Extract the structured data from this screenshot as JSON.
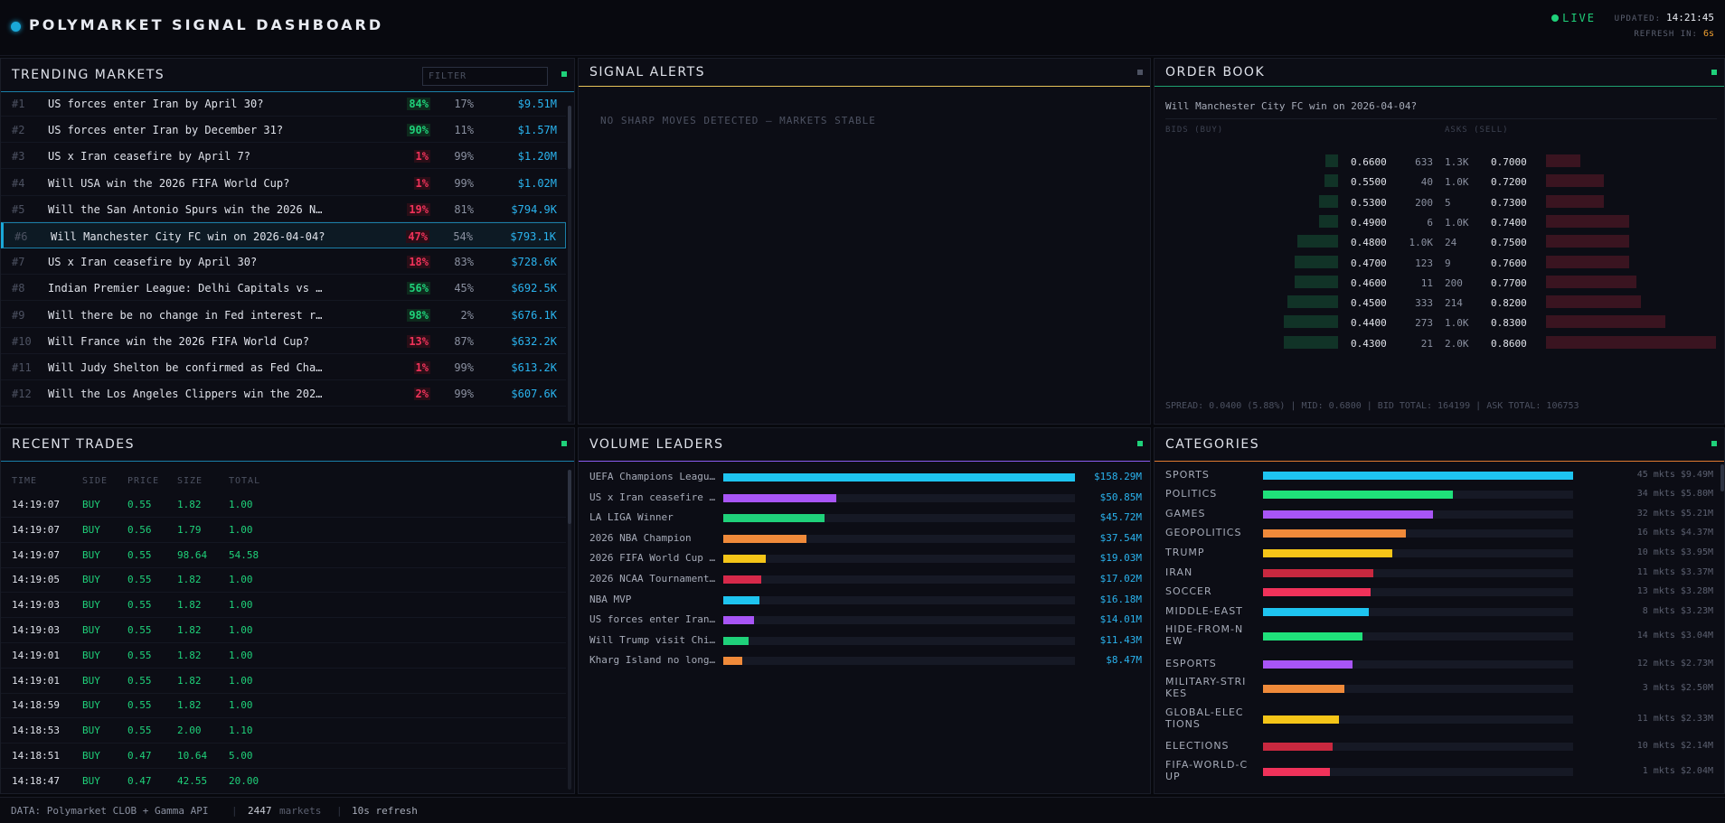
{
  "app": {
    "title": "POLYMARKET SIGNAL DASHBOARD",
    "live": "LIVE",
    "updated_label": "UPDATED:",
    "updated_time": "14:21:45",
    "refresh_label": "REFRESH IN:",
    "refresh_value": "6s"
  },
  "trending": {
    "title": "TRENDING MARKETS",
    "filter_placeholder": "FILTER",
    "rows": [
      {
        "rank": "#1",
        "q": "US forces enter Iran by April 30?",
        "yes": "84%",
        "no": "17%",
        "vol": "$9.51M",
        "pos": true
      },
      {
        "rank": "#2",
        "q": "US forces enter Iran by December 31?",
        "yes": "90%",
        "no": "11%",
        "vol": "$1.57M",
        "pos": true
      },
      {
        "rank": "#3",
        "q": "US x Iran ceasefire by April 7?",
        "yes": "1%",
        "no": "99%",
        "vol": "$1.20M",
        "pos": false
      },
      {
        "rank": "#4",
        "q": "Will USA win the 2026 FIFA World Cup?",
        "yes": "1%",
        "no": "99%",
        "vol": "$1.02M",
        "pos": false
      },
      {
        "rank": "#5",
        "q": "Will the San Antonio Spurs win the 2026 N…",
        "yes": "19%",
        "no": "81%",
        "vol": "$794.9K",
        "pos": false
      },
      {
        "rank": "#6",
        "q": "Will Manchester City FC win on 2026-04-04?",
        "yes": "47%",
        "no": "54%",
        "vol": "$793.1K",
        "pos": false,
        "selected": true
      },
      {
        "rank": "#7",
        "q": "US x Iran ceasefire by April 30?",
        "yes": "18%",
        "no": "83%",
        "vol": "$728.6K",
        "pos": false
      },
      {
        "rank": "#8",
        "q": "Indian Premier League: Delhi Capitals vs …",
        "yes": "56%",
        "no": "45%",
        "vol": "$692.5K",
        "pos": true
      },
      {
        "rank": "#9",
        "q": "Will there be no change in Fed interest r…",
        "yes": "98%",
        "no": "2%",
        "vol": "$676.1K",
        "pos": true
      },
      {
        "rank": "#10",
        "q": "Will France win the 2026 FIFA World Cup?",
        "yes": "13%",
        "no": "87%",
        "vol": "$632.2K",
        "pos": false
      },
      {
        "rank": "#11",
        "q": "Will Judy Shelton be confirmed as Fed Cha…",
        "yes": "1%",
        "no": "99%",
        "vol": "$613.2K",
        "pos": false
      },
      {
        "rank": "#12",
        "q": "Will the Los Angeles Clippers win the 202…",
        "yes": "2%",
        "no": "99%",
        "vol": "$607.6K",
        "pos": false
      }
    ]
  },
  "alerts": {
    "title": "SIGNAL ALERTS",
    "empty_message": "NO SHARP MOVES DETECTED — MARKETS STABLE"
  },
  "orderbook": {
    "title": "ORDER BOOK",
    "question": "Will Manchester City FC win on 2026-04-04?",
    "bids_label": "BIDS (BUY)",
    "asks_label": "ASKS (SELL)",
    "rows": [
      {
        "bid_price": "0.6600",
        "bid_size": "633",
        "ask_size": "1.3K",
        "ask_price": "0.7000",
        "bid_depth": 0.09,
        "ask_depth": 0.2
      },
      {
        "bid_price": "0.5500",
        "bid_size": "40",
        "ask_size": "1.0K",
        "ask_price": "0.7200",
        "bid_depth": 0.1,
        "ask_depth": 0.34
      },
      {
        "bid_price": "0.5300",
        "bid_size": "200",
        "ask_size": "5",
        "ask_price": "0.7300",
        "bid_depth": 0.14,
        "ask_depth": 0.34
      },
      {
        "bid_price": "0.4900",
        "bid_size": "6",
        "ask_size": "1.0K",
        "ask_price": "0.7400",
        "bid_depth": 0.14,
        "ask_depth": 0.49
      },
      {
        "bid_price": "0.4800",
        "bid_size": "1.0K",
        "ask_size": "24",
        "ask_price": "0.7500",
        "bid_depth": 0.3,
        "ask_depth": 0.49
      },
      {
        "bid_price": "0.4700",
        "bid_size": "123",
        "ask_size": "9",
        "ask_price": "0.7600",
        "bid_depth": 0.32,
        "ask_depth": 0.49
      },
      {
        "bid_price": "0.4600",
        "bid_size": "11",
        "ask_size": "200",
        "ask_price": "0.7700",
        "bid_depth": 0.32,
        "ask_depth": 0.53
      },
      {
        "bid_price": "0.4500",
        "bid_size": "333",
        "ask_size": "214",
        "ask_price": "0.8200",
        "bid_depth": 0.37,
        "ask_depth": 0.56
      },
      {
        "bid_price": "0.4400",
        "bid_size": "273",
        "ask_size": "1.0K",
        "ask_price": "0.8300",
        "bid_depth": 0.4,
        "ask_depth": 0.7
      },
      {
        "bid_price": "0.4300",
        "bid_size": "21",
        "ask_size": "2.0K",
        "ask_price": "0.8600",
        "bid_depth": 0.4,
        "ask_depth": 1.0
      }
    ],
    "footer": "SPREAD: 0.0400 (5.88%) | MID: 0.6800 | BID TOTAL: 164199 | ASK TOTAL: 106753"
  },
  "trades": {
    "title": "RECENT TRADES",
    "headers": {
      "time": "TIME",
      "side": "SIDE",
      "price": "PRICE",
      "size": "SIZE",
      "total": "TOTAL"
    },
    "rows": [
      {
        "time": "14:19:07",
        "side": "BUY",
        "price": "0.55",
        "size": "1.82",
        "total": "1.00"
      },
      {
        "time": "14:19:07",
        "side": "BUY",
        "price": "0.56",
        "size": "1.79",
        "total": "1.00"
      },
      {
        "time": "14:19:07",
        "side": "BUY",
        "price": "0.55",
        "size": "98.64",
        "total": "54.58"
      },
      {
        "time": "14:19:05",
        "side": "BUY",
        "price": "0.55",
        "size": "1.82",
        "total": "1.00"
      },
      {
        "time": "14:19:03",
        "side": "BUY",
        "price": "0.55",
        "size": "1.82",
        "total": "1.00"
      },
      {
        "time": "14:19:03",
        "side": "BUY",
        "price": "0.55",
        "size": "1.82",
        "total": "1.00"
      },
      {
        "time": "14:19:01",
        "side": "BUY",
        "price": "0.55",
        "size": "1.82",
        "total": "1.00"
      },
      {
        "time": "14:19:01",
        "side": "BUY",
        "price": "0.55",
        "size": "1.82",
        "total": "1.00"
      },
      {
        "time": "14:18:59",
        "side": "BUY",
        "price": "0.55",
        "size": "1.82",
        "total": "1.00"
      },
      {
        "time": "14:18:53",
        "side": "BUY",
        "price": "0.55",
        "size": "2.00",
        "total": "1.10"
      },
      {
        "time": "14:18:51",
        "side": "BUY",
        "price": "0.47",
        "size": "10.64",
        "total": "5.00"
      },
      {
        "time": "14:18:47",
        "side": "BUY",
        "price": "0.47",
        "size": "42.55",
        "total": "20.00"
      }
    ]
  },
  "volume": {
    "title": "VOLUME LEADERS",
    "rows": [
      {
        "name": "UEFA Champions Leagu…",
        "value": "$158.29M",
        "amount": 158.29,
        "color": "#1ec4f0"
      },
      {
        "name": "US x Iran ceasefire …",
        "value": "$50.85M",
        "amount": 50.85,
        "color": "#a855f7"
      },
      {
        "name": "LA LIGA Winner",
        "value": "$45.72M",
        "amount": 45.72,
        "color": "#1fd17a"
      },
      {
        "name": "2026 NBA Champion",
        "value": "$37.54M",
        "amount": 37.54,
        "color": "#f08a3a"
      },
      {
        "name": "2026 FIFA World Cup …",
        "value": "$19.03M",
        "amount": 19.03,
        "color": "#f5c518"
      },
      {
        "name": "2026 NCAA Tournament…",
        "value": "$17.02M",
        "amount": 17.02,
        "color": "#d6294a"
      },
      {
        "name": "NBA MVP",
        "value": "$16.18M",
        "amount": 16.18,
        "color": "#1ec4f0"
      },
      {
        "name": "US forces enter Iran…",
        "value": "$14.01M",
        "amount": 14.01,
        "color": "#a855f7"
      },
      {
        "name": "Will Trump visit Chi…",
        "value": "$11.43M",
        "amount": 11.43,
        "color": "#1fd17a"
      },
      {
        "name": "Kharg Island no long…",
        "value": "$8.47M",
        "amount": 8.47,
        "color": "#f08a3a"
      }
    ]
  },
  "categories": {
    "title": "CATEGORIES",
    "rows": [
      {
        "name": "SPORTS",
        "value": "45 mkts $9.49M",
        "amount": 9.49,
        "color": "#1ec4f0"
      },
      {
        "name": "POLITICS",
        "value": "34 mkts $5.80M",
        "amount": 5.8,
        "color": "#1fe07a"
      },
      {
        "name": "GAMES",
        "value": "32 mkts $5.21M",
        "amount": 5.21,
        "color": "#a855f7"
      },
      {
        "name": "GEOPOLITICS",
        "value": "16 mkts $4.37M",
        "amount": 4.37,
        "color": "#f08a3a"
      },
      {
        "name": "TRUMP",
        "value": "10 mkts $3.95M",
        "amount": 3.95,
        "color": "#f5c518"
      },
      {
        "name": "IRAN",
        "value": "11 mkts $3.37M",
        "amount": 3.37,
        "color": "#c8283f"
      },
      {
        "name": "SOCCER",
        "value": "13 mkts $3.28M",
        "amount": 3.28,
        "color": "#f0325a"
      },
      {
        "name": "MIDDLE-EAST",
        "value": "8 mkts $3.23M",
        "amount": 3.23,
        "color": "#1ec4f0"
      },
      {
        "name": "HIDE-FROM-NEW",
        "value": "14 mkts $3.04M",
        "amount": 3.04,
        "color": "#1fe07a"
      },
      {
        "name": "ESPORTS",
        "value": "12 mkts $2.73M",
        "amount": 2.73,
        "color": "#a855f7"
      },
      {
        "name": "MILITARY-STRIKES",
        "value": "3 mkts $2.50M",
        "amount": 2.5,
        "color": "#f08a3a"
      },
      {
        "name": "GLOBAL-ELECTIONS",
        "value": "11 mkts $2.33M",
        "amount": 2.33,
        "color": "#f5c518"
      },
      {
        "name": "ELECTIONS",
        "value": "10 mkts $2.14M",
        "amount": 2.14,
        "color": "#c8283f"
      },
      {
        "name": "FIFA-WORLD-CUP",
        "value": "1 mkts $2.04M",
        "amount": 2.04,
        "color": "#f0325a"
      }
    ]
  },
  "footer": {
    "source": "DATA: Polymarket CLOB + Gamma API",
    "count": "2447",
    "markets_label": "markets",
    "refresh": "10s refresh"
  },
  "colors": {
    "accent_cyan": "#1aa8d8",
    "positive": "#1fd17a",
    "negative": "#f0325a",
    "alerts_accent": "#e6c35a",
    "volume_accent": "#8a5cf0",
    "categories_accent": "#e07a30"
  }
}
